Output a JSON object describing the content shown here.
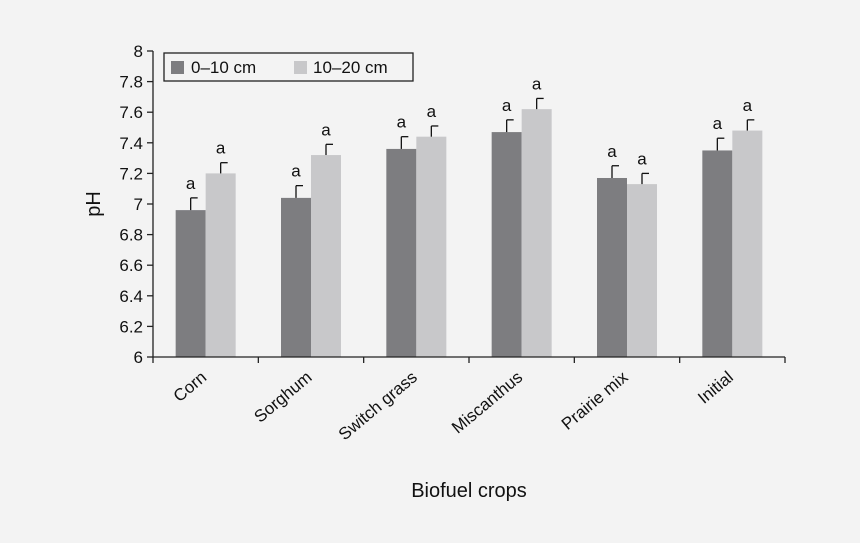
{
  "chart_data": {
    "type": "bar",
    "xlabel": "Biofuel crops",
    "ylabel": "pH",
    "ylim": [
      6,
      8
    ],
    "yticks": [
      6,
      6.2,
      6.4,
      6.6,
      6.8,
      7,
      7.2,
      7.4,
      7.6,
      7.8,
      8
    ],
    "ytick_labels": [
      "6",
      "6.2",
      "6.4",
      "6.6",
      "6.8",
      "7",
      "7.2",
      "7.4",
      "7.6",
      "7.8",
      "8"
    ],
    "categories": [
      "Corn",
      "Sorghum",
      "Switch grass",
      "Miscanthus",
      "Prairie mix",
      "Initial"
    ],
    "series": [
      {
        "name": "0–10 cm",
        "color": "#7d7d80",
        "values": [
          6.96,
          7.04,
          7.36,
          7.47,
          7.17,
          7.35
        ],
        "errors": [
          0.08,
          0.08,
          0.08,
          0.08,
          0.08,
          0.08
        ],
        "labels": [
          "a",
          "a",
          "a",
          "a",
          "a",
          "a"
        ]
      },
      {
        "name": "10–20 cm",
        "color": "#c8c8ca",
        "values": [
          7.2,
          7.32,
          7.44,
          7.62,
          7.13,
          7.48
        ],
        "errors": [
          0.07,
          0.07,
          0.07,
          0.07,
          0.07,
          0.07
        ],
        "labels": [
          "a",
          "a",
          "a",
          "a",
          "a",
          "a"
        ]
      }
    ],
    "legend_position": "top-left",
    "grid": false
  }
}
